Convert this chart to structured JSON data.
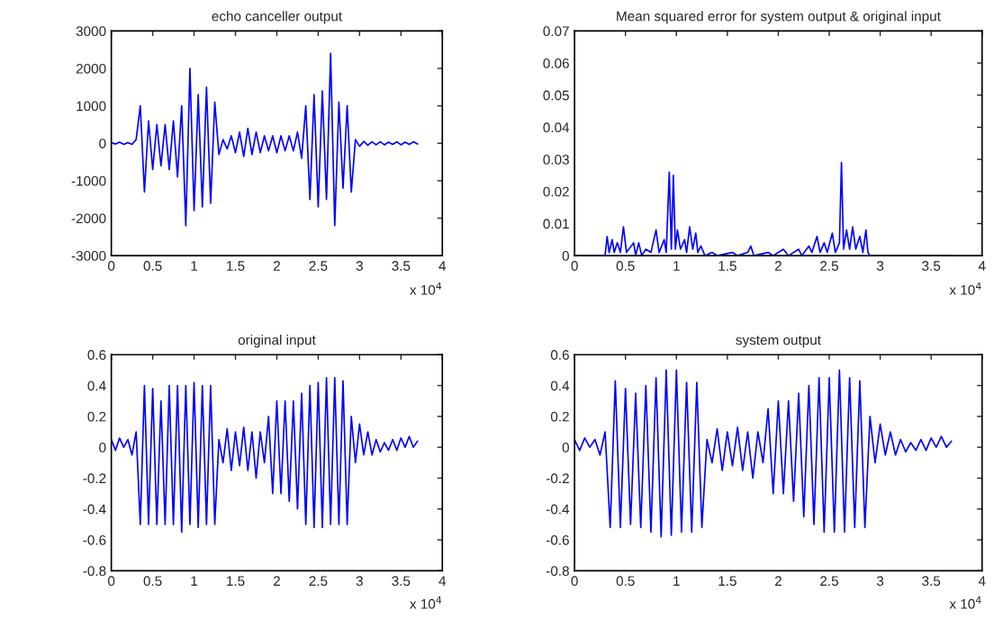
{
  "chart_data": [
    {
      "type": "line",
      "title": "echo canceller output",
      "annotations": [
        "x 10$^{4}$"
      ],
      "x": [
        0,
        0.05,
        0.1,
        0.15,
        0.2,
        0.25,
        0.3,
        0.35,
        0.4,
        0.45,
        0.5,
        0.55,
        0.6,
        0.65,
        0.7,
        0.75,
        0.8,
        0.85,
        0.9,
        0.95,
        1.0,
        1.05,
        1.1,
        1.15,
        1.2,
        1.25,
        1.3,
        1.35,
        1.4,
        1.45,
        1.5,
        1.55,
        1.6,
        1.65,
        1.7,
        1.75,
        1.8,
        1.85,
        1.9,
        1.95,
        2.0,
        2.05,
        2.1,
        2.15,
        2.2,
        2.25,
        2.3,
        2.35,
        2.4,
        2.45,
        2.5,
        2.55,
        2.6,
        2.65,
        2.7,
        2.75,
        2.8,
        2.85,
        2.9,
        2.95,
        3.0,
        3.05,
        3.1,
        3.15,
        3.2,
        3.25,
        3.3,
        3.35,
        3.4,
        3.45,
        3.5,
        3.55,
        3.6,
        3.65,
        3.7
      ],
      "series": [
        {
          "color": "#0000ff",
          "values": [
            20,
            -20,
            30,
            -30,
            20,
            -30,
            100,
            1000,
            -1300,
            600,
            -700,
            500,
            -600,
            500,
            -700,
            600,
            -900,
            1000,
            -2200,
            2000,
            -1800,
            1300,
            -1700,
            1500,
            -1600,
            1100,
            -300,
            100,
            -150,
            200,
            -250,
            300,
            -350,
            400,
            -300,
            300,
            -250,
            200,
            -200,
            200,
            -250,
            200,
            -200,
            200,
            -200,
            300,
            -400,
            1000,
            -1500,
            1300,
            -1700,
            1400,
            -1500,
            2400,
            -2200,
            1100,
            -1200,
            1000,
            -1300,
            100,
            -80,
            50,
            -50,
            40,
            -40,
            40,
            -40,
            30,
            -30,
            40,
            -40,
            30,
            -30,
            40,
            -20
          ]
        }
      ],
      "xlim": [
        0,
        4
      ],
      "xticks": [
        0,
        0.5,
        1,
        1.5,
        2,
        2.5,
        3,
        3.5,
        4
      ],
      "ylim": [
        -3000,
        3000
      ],
      "yticks": [
        -3000,
        -2000,
        -1000,
        0,
        1000,
        2000,
        3000
      ]
    },
    {
      "type": "line",
      "title": "Mean squared error for system output & original input",
      "annotations": [
        "x 10$^{4}$"
      ],
      "x": [
        0,
        0.3,
        0.32,
        0.34,
        0.37,
        0.39,
        0.42,
        0.45,
        0.48,
        0.51,
        0.58,
        0.6,
        0.63,
        0.66,
        0.7,
        0.75,
        0.8,
        0.83,
        0.88,
        0.9,
        0.93,
        0.95,
        0.97,
        0.99,
        1.01,
        1.04,
        1.08,
        1.1,
        1.13,
        1.16,
        1.19,
        1.21,
        1.24,
        1.28,
        1.35,
        1.4,
        1.55,
        1.6,
        1.7,
        1.73,
        1.76,
        1.9,
        1.95,
        2.05,
        2.1,
        2.2,
        2.23,
        2.3,
        2.33,
        2.38,
        2.41,
        2.45,
        2.48,
        2.53,
        2.56,
        2.6,
        2.62,
        2.64,
        2.67,
        2.7,
        2.73,
        2.76,
        2.8,
        2.83,
        2.86,
        2.88,
        2.9,
        3.7
      ],
      "series": [
        {
          "color": "#0000ff",
          "values": [
            0,
            0,
            0.006,
            0.001,
            0.005,
            0.001,
            0.004,
            0.001,
            0.009,
            0.001,
            0.004,
            0,
            0.004,
            0,
            0.002,
            0.001,
            0.008,
            0.001,
            0.005,
            0.001,
            0.026,
            0.002,
            0.025,
            0.002,
            0.008,
            0.002,
            0.005,
            0.001,
            0.009,
            0.002,
            0.007,
            0.001,
            0.003,
            0,
            0.001,
            0,
            0.001,
            0,
            0.001,
            0.003,
            0,
            0.001,
            0,
            0.002,
            0,
            0.002,
            0,
            0.003,
            0.001,
            0.006,
            0.001,
            0.004,
            0.001,
            0.007,
            0.001,
            0.004,
            0.029,
            0.002,
            0.008,
            0.002,
            0.009,
            0.002,
            0.006,
            0.001,
            0.008,
            0.001,
            0,
            0
          ]
        }
      ],
      "xlim": [
        0,
        4
      ],
      "xticks": [
        0,
        0.5,
        1,
        1.5,
        2,
        2.5,
        3,
        3.5,
        4
      ],
      "ylim": [
        0,
        0.07
      ],
      "yticks": [
        0,
        0.01,
        0.02,
        0.03,
        0.04,
        0.05,
        0.06,
        0.07
      ]
    },
    {
      "type": "line",
      "title": "original input",
      "annotations": [
        "x 10$^{4}$"
      ],
      "x": [
        0,
        0.05,
        0.1,
        0.15,
        0.2,
        0.25,
        0.3,
        0.35,
        0.4,
        0.45,
        0.5,
        0.55,
        0.6,
        0.65,
        0.7,
        0.75,
        0.8,
        0.85,
        0.9,
        0.95,
        1.0,
        1.05,
        1.1,
        1.15,
        1.2,
        1.25,
        1.3,
        1.35,
        1.4,
        1.45,
        1.5,
        1.55,
        1.6,
        1.65,
        1.7,
        1.75,
        1.8,
        1.85,
        1.9,
        1.95,
        2.0,
        2.05,
        2.1,
        2.15,
        2.2,
        2.25,
        2.3,
        2.35,
        2.4,
        2.45,
        2.5,
        2.55,
        2.6,
        2.65,
        2.7,
        2.75,
        2.8,
        2.85,
        2.9,
        2.95,
        3.0,
        3.05,
        3.1,
        3.15,
        3.2,
        3.25,
        3.3,
        3.35,
        3.4,
        3.45,
        3.5,
        3.55,
        3.6,
        3.65,
        3.7
      ],
      "series": [
        {
          "color": "#0000ff",
          "values": [
            0.05,
            -0.02,
            0.06,
            0.0,
            0.05,
            -0.05,
            0.1,
            -0.5,
            0.4,
            -0.5,
            0.38,
            -0.5,
            0.3,
            -0.5,
            0.4,
            -0.5,
            0.4,
            -0.55,
            0.4,
            -0.5,
            0.42,
            -0.52,
            0.4,
            -0.5,
            0.4,
            -0.5,
            0.05,
            -0.1,
            0.12,
            -0.15,
            0.1,
            -0.12,
            0.13,
            -0.15,
            0.1,
            -0.2,
            0.1,
            -0.1,
            0.2,
            -0.3,
            0.3,
            -0.3,
            0.3,
            -0.35,
            0.3,
            -0.4,
            0.35,
            -0.5,
            0.4,
            -0.52,
            0.42,
            -0.52,
            0.45,
            -0.5,
            0.45,
            -0.5,
            0.43,
            -0.5,
            0.2,
            -0.1,
            0.15,
            -0.05,
            0.1,
            -0.05,
            0.05,
            -0.03,
            0.03,
            -0.02,
            0.05,
            -0.02,
            0.06,
            0.0,
            0.07,
            0.0,
            0.04
          ]
        }
      ],
      "xlim": [
        0,
        4
      ],
      "xticks": [
        0,
        0.5,
        1,
        1.5,
        2,
        2.5,
        3,
        3.5,
        4
      ],
      "ylim": [
        -0.8,
        0.6
      ],
      "yticks": [
        -0.8,
        -0.6,
        -0.4,
        -0.2,
        0,
        0.2,
        0.4,
        0.6
      ]
    },
    {
      "type": "line",
      "title": "system output",
      "annotations": [
        "x 10$^{4}$"
      ],
      "x": [
        0,
        0.05,
        0.1,
        0.15,
        0.2,
        0.25,
        0.3,
        0.35,
        0.4,
        0.45,
        0.5,
        0.55,
        0.6,
        0.65,
        0.7,
        0.75,
        0.8,
        0.85,
        0.9,
        0.95,
        1.0,
        1.05,
        1.1,
        1.15,
        1.2,
        1.25,
        1.3,
        1.35,
        1.4,
        1.45,
        1.5,
        1.55,
        1.6,
        1.65,
        1.7,
        1.75,
        1.8,
        1.85,
        1.9,
        1.95,
        2.0,
        2.05,
        2.1,
        2.15,
        2.2,
        2.25,
        2.3,
        2.35,
        2.4,
        2.45,
        2.5,
        2.55,
        2.6,
        2.65,
        2.7,
        2.75,
        2.8,
        2.85,
        2.9,
        2.95,
        3.0,
        3.05,
        3.1,
        3.15,
        3.2,
        3.25,
        3.3,
        3.35,
        3.4,
        3.45,
        3.5,
        3.55,
        3.6,
        3.65,
        3.7
      ],
      "series": [
        {
          "color": "#0000ff",
          "values": [
            0.05,
            -0.02,
            0.06,
            0.0,
            0.05,
            -0.05,
            0.1,
            -0.52,
            0.43,
            -0.52,
            0.38,
            -0.5,
            0.35,
            -0.52,
            0.4,
            -0.55,
            0.45,
            -0.58,
            0.5,
            -0.57,
            0.5,
            -0.55,
            0.42,
            -0.55,
            0.42,
            -0.52,
            0.05,
            -0.1,
            0.12,
            -0.15,
            0.1,
            -0.12,
            0.13,
            -0.15,
            0.1,
            -0.2,
            0.1,
            -0.1,
            0.25,
            -0.3,
            0.3,
            -0.3,
            0.3,
            -0.35,
            0.35,
            -0.45,
            0.4,
            -0.5,
            0.45,
            -0.55,
            0.45,
            -0.55,
            0.5,
            -0.55,
            0.45,
            -0.52,
            0.43,
            -0.52,
            0.2,
            -0.1,
            0.15,
            -0.05,
            0.1,
            -0.05,
            0.05,
            -0.03,
            0.03,
            -0.02,
            0.05,
            -0.02,
            0.06,
            0.0,
            0.07,
            0.0,
            0.04
          ]
        }
      ],
      "xlim": [
        0,
        4
      ],
      "xticks": [
        0,
        0.5,
        1,
        1.5,
        2,
        2.5,
        3,
        3.5,
        4
      ],
      "ylim": [
        -0.8,
        0.6
      ],
      "yticks": [
        -0.8,
        -0.6,
        -0.4,
        -0.2,
        0,
        0.2,
        0.4,
        0.6
      ]
    }
  ]
}
